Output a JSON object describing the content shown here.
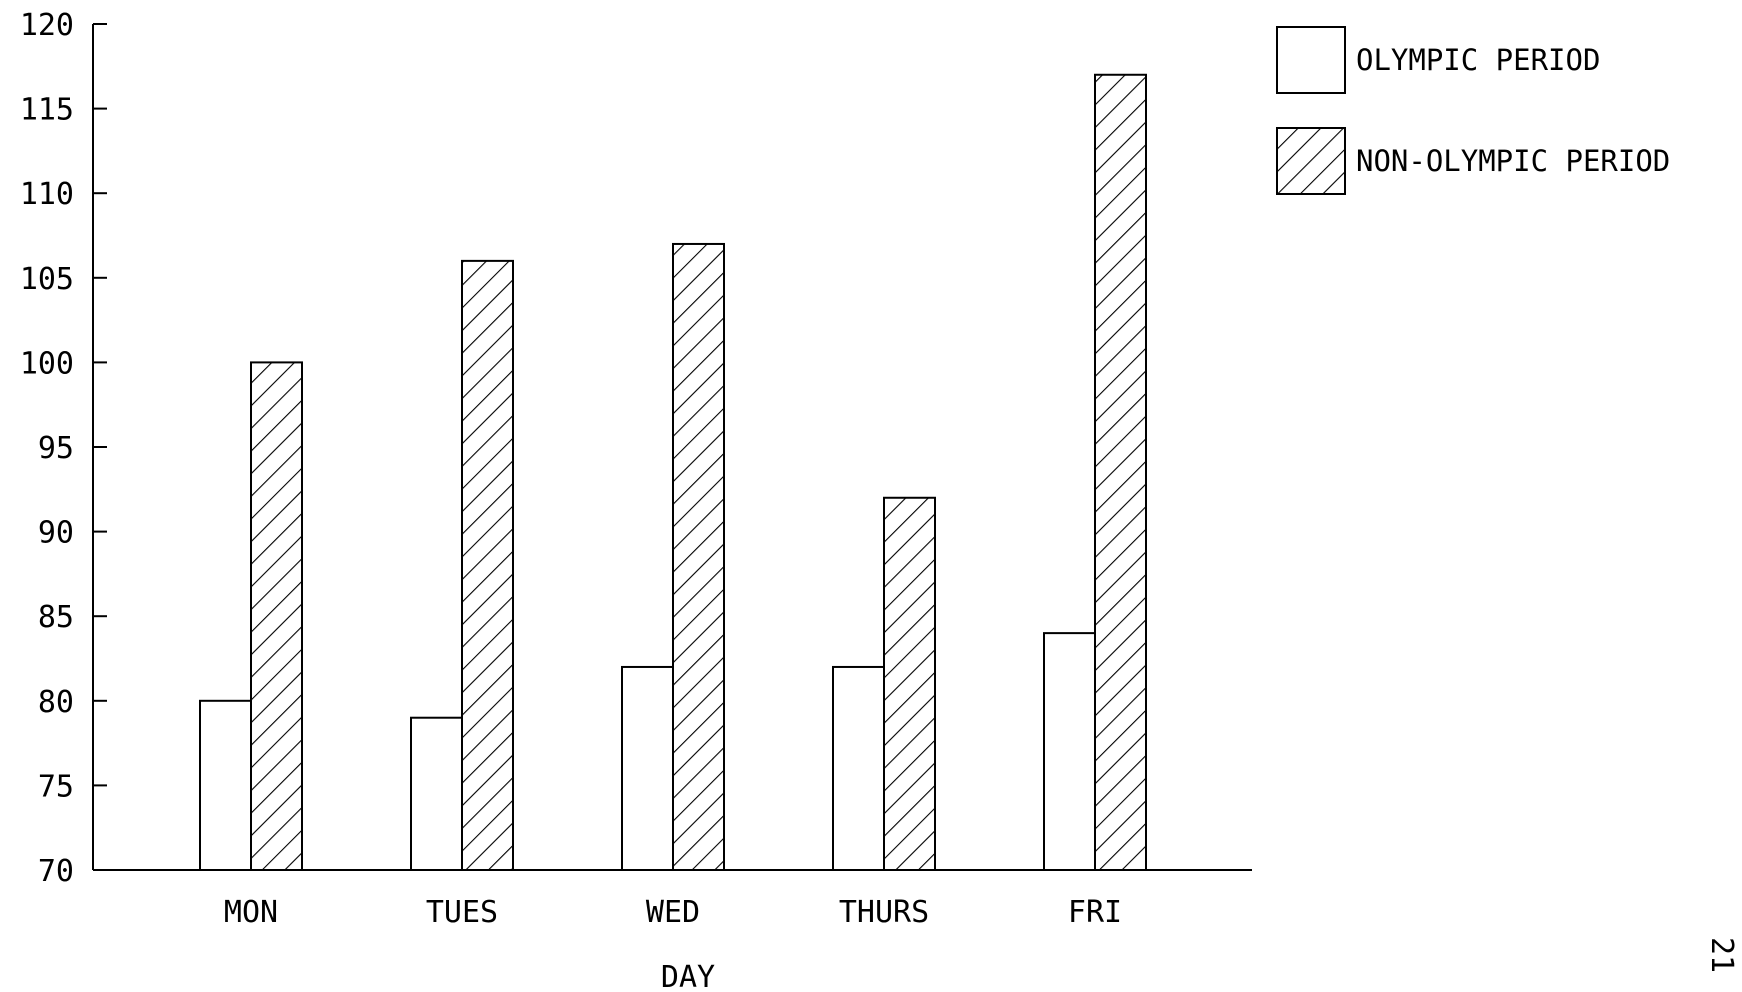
{
  "chart_data": {
    "type": "bar",
    "title": "",
    "xlabel": "DAY",
    "ylabel": "",
    "ylim": [
      70,
      120
    ],
    "yticks": [
      70,
      75,
      80,
      85,
      90,
      95,
      100,
      105,
      110,
      115,
      120
    ],
    "categories": [
      "MON",
      "TUES",
      "WED",
      "THURS",
      "FRI"
    ],
    "series": [
      {
        "name": "OLYMPIC PERIOD",
        "fill": "none",
        "values": [
          80,
          79,
          82,
          82,
          84
        ]
      },
      {
        "name": "NON-OLYMPIC PERIOD",
        "fill": "diagonal-hatch",
        "values": [
          100,
          106,
          107,
          92,
          117
        ]
      }
    ],
    "legend": {
      "placement": "top-right"
    },
    "grid": false
  },
  "page_number": "21",
  "colors": {
    "ink": "#000000",
    "background": "#ffffff"
  }
}
